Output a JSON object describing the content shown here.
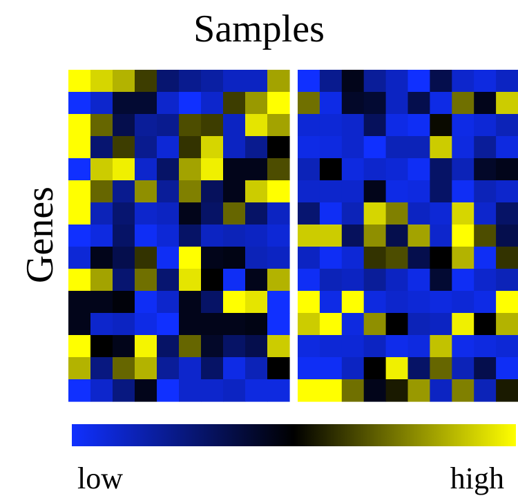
{
  "chart_data": {
    "type": "heatmap",
    "title": "Samples",
    "ylabel": "Genes",
    "value_range": [
      0,
      1
    ],
    "colorbar": {
      "low_label": "low",
      "high_label": "high",
      "colors": [
        "#1030ff",
        "#000000",
        "#ffff00"
      ]
    },
    "panels": [
      {
        "rows": [
          [
            1.0,
            0.92,
            0.85,
            0.62,
            0.28,
            0.22,
            0.18,
            0.12,
            0.12,
            0.82
          ],
          [
            0.0,
            0.1,
            0.4,
            0.4,
            0.1,
            0.0,
            0.1,
            0.62,
            0.8,
            1.0
          ],
          [
            1.0,
            0.7,
            0.35,
            0.2,
            0.22,
            0.65,
            0.62,
            0.12,
            0.95,
            0.82
          ],
          [
            1.0,
            0.28,
            0.62,
            0.22,
            0.08,
            0.6,
            0.92,
            0.12,
            0.22,
            0.5
          ],
          [
            0.0,
            0.9,
            0.97,
            0.1,
            0.3,
            0.82,
            0.97,
            0.45,
            0.45,
            0.65
          ],
          [
            1.0,
            0.7,
            0.22,
            0.78,
            0.2,
            0.75,
            0.32,
            0.45,
            0.9,
            1.0
          ],
          [
            1.0,
            0.14,
            0.28,
            0.1,
            0.12,
            0.45,
            0.3,
            0.7,
            0.3,
            0.12
          ],
          [
            0.0,
            0.06,
            0.3,
            0.02,
            0.08,
            0.3,
            0.12,
            0.14,
            0.12,
            0.08
          ],
          [
            0.08,
            0.45,
            0.35,
            0.6,
            0.02,
            1.0,
            0.45,
            0.46,
            0.14,
            0.12
          ],
          [
            1.0,
            0.82,
            0.28,
            0.72,
            0.28,
            0.95,
            0.5,
            0.02,
            0.45,
            0.85
          ],
          [
            0.45,
            0.45,
            0.48,
            0.02,
            0.1,
            0.45,
            0.3,
            1.0,
            0.95,
            0.0
          ],
          [
            0.45,
            0.1,
            0.12,
            0.05,
            0.0,
            0.45,
            0.45,
            0.45,
            0.46,
            0.0
          ],
          [
            1.0,
            0.5,
            0.45,
            0.98,
            0.3,
            0.7,
            0.42,
            0.3,
            0.35,
            0.9
          ],
          [
            0.85,
            0.25,
            0.7,
            0.85,
            0.2,
            0.1,
            0.3,
            0.05,
            0.14,
            0.5
          ],
          [
            0.0,
            0.1,
            0.25,
            0.45,
            0.0,
            0.1,
            0.1,
            0.12,
            0.06,
            0.06
          ]
        ]
      },
      {
        "rows": [
          [
            0.0,
            0.22,
            0.45,
            0.2,
            0.12,
            0.0,
            0.35,
            0.1,
            0.06,
            0.12
          ],
          [
            0.72,
            0.05,
            0.42,
            0.4,
            0.12,
            0.35,
            0.05,
            0.72,
            0.45,
            0.9
          ],
          [
            0.08,
            0.08,
            0.1,
            0.32,
            0.05,
            0.02,
            0.52,
            0.05,
            0.08,
            0.14
          ],
          [
            0.05,
            0.06,
            0.1,
            0.0,
            0.14,
            0.14,
            0.9,
            0.06,
            0.2,
            0.06
          ],
          [
            0.14,
            0.5,
            0.06,
            0.1,
            0.08,
            0.02,
            0.3,
            0.14,
            0.42,
            0.45
          ],
          [
            0.1,
            0.1,
            0.1,
            0.45,
            0.05,
            0.06,
            0.3,
            0.02,
            0.14,
            0.1
          ],
          [
            0.28,
            0.02,
            0.14,
            0.92,
            0.75,
            0.12,
            0.08,
            0.92,
            0.1,
            0.3
          ],
          [
            0.9,
            0.9,
            0.32,
            0.78,
            0.35,
            0.82,
            0.1,
            1.0,
            0.65,
            0.35
          ],
          [
            0.12,
            0.02,
            0.08,
            0.6,
            0.65,
            0.35,
            0.5,
            0.85,
            0.02,
            0.6
          ],
          [
            0.02,
            0.14,
            0.12,
            0.2,
            0.12,
            0.05,
            0.4,
            0.02,
            0.1,
            0.14
          ],
          [
            1.0,
            0.05,
            1.0,
            0.06,
            0.1,
            0.08,
            0.06,
            0.08,
            0.05,
            1.0
          ],
          [
            0.9,
            1.0,
            0.06,
            0.78,
            0.5,
            0.14,
            0.12,
            0.97,
            0.5,
            0.85
          ],
          [
            0.06,
            0.08,
            0.08,
            0.12,
            0.04,
            0.06,
            0.88,
            0.04,
            0.06,
            0.08
          ],
          [
            0.02,
            0.02,
            0.12,
            0.5,
            0.97,
            0.3,
            0.7,
            0.14,
            0.35,
            0.02
          ],
          [
            1.0,
            1.0,
            0.72,
            0.45,
            0.55,
            0.8,
            0.12,
            0.75,
            0.14,
            0.55
          ]
        ]
      }
    ]
  }
}
